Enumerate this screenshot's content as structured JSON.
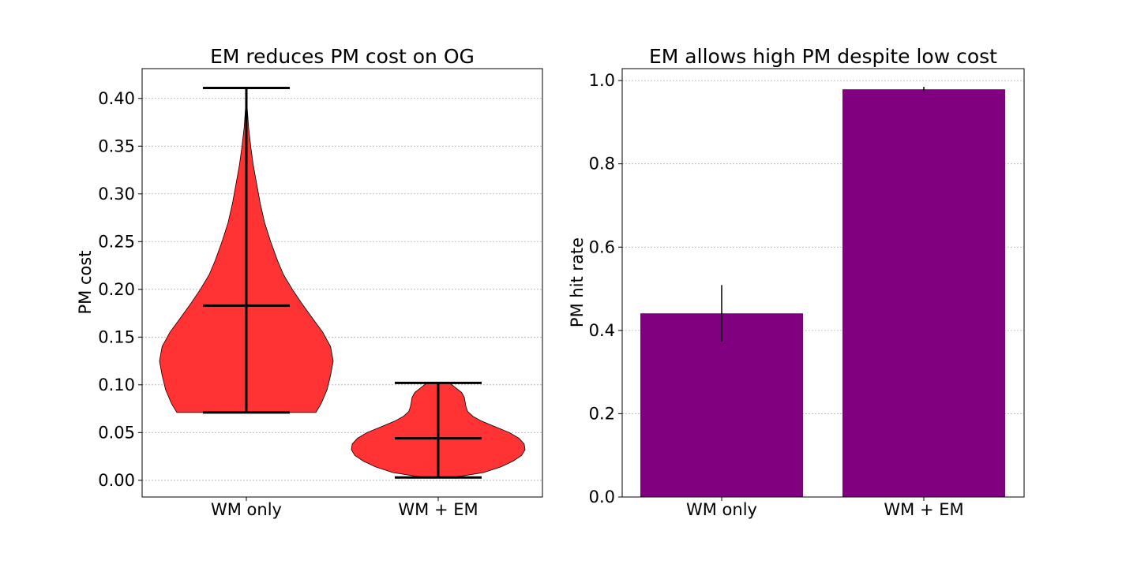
{
  "chart_data": [
    {
      "type": "violin",
      "title": "EM reduces PM cost on OG",
      "xlabel": "",
      "ylabel": "PM cost",
      "categories": [
        "WM only",
        "WM + EM"
      ],
      "ylim": [
        -0.0175,
        0.4312
      ],
      "yticks": [
        0.0,
        0.05,
        0.1,
        0.15,
        0.2,
        0.25,
        0.3,
        0.35,
        0.4
      ],
      "yticklabels": [
        "0.00",
        "0.05",
        "0.10",
        "0.15",
        "0.20",
        "0.25",
        "0.30",
        "0.35",
        "0.40"
      ],
      "grid": "horizontal",
      "color": "#ff3333",
      "series": [
        {
          "category": "WM only",
          "min": 0.071,
          "max": 0.411,
          "mean": 0.183,
          "density": [
            [
              0.071,
              0.8
            ],
            [
              0.08,
              0.86
            ],
            [
              0.095,
              0.93
            ],
            [
              0.11,
              0.97
            ],
            [
              0.125,
              1.0
            ],
            [
              0.14,
              0.97
            ],
            [
              0.155,
              0.88
            ],
            [
              0.17,
              0.76
            ],
            [
              0.185,
              0.64
            ],
            [
              0.2,
              0.53
            ],
            [
              0.215,
              0.43
            ],
            [
              0.23,
              0.36
            ],
            [
              0.25,
              0.28
            ],
            [
              0.27,
              0.21
            ],
            [
              0.29,
              0.16
            ],
            [
              0.31,
              0.12
            ],
            [
              0.33,
              0.08
            ],
            [
              0.35,
              0.05
            ],
            [
              0.37,
              0.025
            ],
            [
              0.39,
              0.01
            ],
            [
              0.411,
              0.0
            ]
          ]
        },
        {
          "category": "WM + EM",
          "min": 0.003,
          "max": 0.102,
          "mean": 0.044,
          "density": [
            [
              0.003,
              0.17
            ],
            [
              0.008,
              0.52
            ],
            [
              0.014,
              0.72
            ],
            [
              0.02,
              0.86
            ],
            [
              0.026,
              0.96
            ],
            [
              0.032,
              1.0
            ],
            [
              0.038,
              0.99
            ],
            [
              0.044,
              0.93
            ],
            [
              0.05,
              0.82
            ],
            [
              0.056,
              0.66
            ],
            [
              0.062,
              0.5
            ],
            [
              0.067,
              0.4
            ],
            [
              0.072,
              0.34
            ],
            [
              0.077,
              0.32
            ],
            [
              0.082,
              0.31
            ],
            [
              0.087,
              0.3
            ],
            [
              0.092,
              0.27
            ],
            [
              0.097,
              0.2
            ],
            [
              0.102,
              0.13
            ]
          ]
        }
      ]
    },
    {
      "type": "bar",
      "title": "EM allows high PM despite low cost",
      "xlabel": "",
      "ylabel": "PM hit rate",
      "categories": [
        "WM only",
        "WM + EM"
      ],
      "values": [
        0.441,
        0.979
      ],
      "errors": [
        0.068,
        0.006
      ],
      "ylim": [
        0.0,
        1.0286
      ],
      "yticks": [
        0.0,
        0.2,
        0.4,
        0.6,
        0.8,
        1.0
      ],
      "yticklabels": [
        "0.0",
        "0.2",
        "0.4",
        "0.6",
        "0.8",
        "1.0"
      ],
      "grid": "horizontal",
      "color": "#800080"
    }
  ]
}
